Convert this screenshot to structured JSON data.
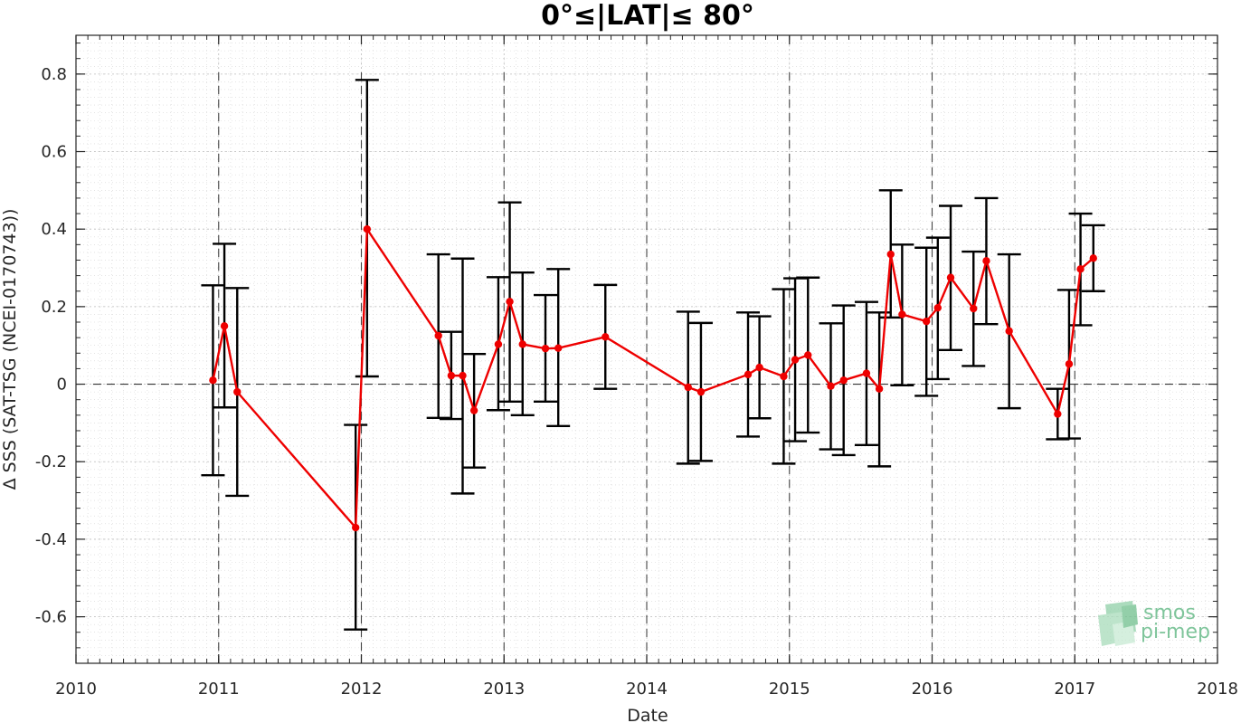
{
  "chart_data": {
    "type": "line",
    "title": "0°≤|LAT|≤ 80°",
    "xlabel": "Date",
    "ylabel": "Δ SSS (SAT-TSG (NCEI-0170743))",
    "xlim": [
      2010,
      2018
    ],
    "ylim": [
      -0.72,
      0.9
    ],
    "xticks": [
      "2010",
      "2011",
      "2012",
      "2013",
      "2014",
      "2015",
      "2016",
      "2017",
      "2018"
    ],
    "yticks": [
      "-0.6",
      "-0.4",
      "-0.2",
      "0",
      "0.2",
      "0.4",
      "0.6",
      "0.8"
    ],
    "grid": true,
    "zero_line": true,
    "vertical_year_lines": [
      "2011",
      "2012",
      "2013",
      "2014",
      "2015",
      "2016",
      "2017"
    ],
    "series": [
      {
        "color": "#ee0000",
        "errorbar_color": "#000000",
        "points": [
          {
            "x": 2010.96,
            "y": 0.01,
            "lo": -0.235,
            "hi": 0.255
          },
          {
            "x": 2011.04,
            "y": 0.15,
            "lo": -0.06,
            "hi": 0.362
          },
          {
            "x": 2011.13,
            "y": -0.02,
            "lo": -0.288,
            "hi": 0.248
          },
          {
            "x": 2011.96,
            "y": -0.37,
            "lo": -0.633,
            "hi": -0.105
          },
          {
            "x": 2012.04,
            "y": 0.4,
            "lo": 0.02,
            "hi": 0.785
          },
          {
            "x": 2012.54,
            "y": 0.125,
            "lo": -0.087,
            "hi": 0.335
          },
          {
            "x": 2012.63,
            "y": 0.022,
            "lo": -0.09,
            "hi": 0.135
          },
          {
            "x": 2012.71,
            "y": 0.022,
            "lo": -0.282,
            "hi": 0.324
          },
          {
            "x": 2012.79,
            "y": -0.068,
            "lo": -0.215,
            "hi": 0.078
          },
          {
            "x": 2012.96,
            "y": 0.103,
            "lo": -0.067,
            "hi": 0.276
          },
          {
            "x": 2013.04,
            "y": 0.213,
            "lo": -0.045,
            "hi": 0.469
          },
          {
            "x": 2013.13,
            "y": 0.103,
            "lo": -0.08,
            "hi": 0.288
          },
          {
            "x": 2013.29,
            "y": 0.092,
            "lo": -0.045,
            "hi": 0.23
          },
          {
            "x": 2013.38,
            "y": 0.093,
            "lo": -0.108,
            "hi": 0.297
          },
          {
            "x": 2013.71,
            "y": 0.122,
            "lo": -0.012,
            "hi": 0.256
          },
          {
            "x": 2014.29,
            "y": -0.008,
            "lo": -0.205,
            "hi": 0.187
          },
          {
            "x": 2014.38,
            "y": -0.02,
            "lo": -0.198,
            "hi": 0.158
          },
          {
            "x": 2014.71,
            "y": 0.025,
            "lo": -0.135,
            "hi": 0.185
          },
          {
            "x": 2014.79,
            "y": 0.043,
            "lo": -0.088,
            "hi": 0.175
          },
          {
            "x": 2014.96,
            "y": 0.02,
            "lo": -0.205,
            "hi": 0.245
          },
          {
            "x": 2015.04,
            "y": 0.063,
            "lo": -0.147,
            "hi": 0.273
          },
          {
            "x": 2015.13,
            "y": 0.075,
            "lo": -0.125,
            "hi": 0.275
          },
          {
            "x": 2015.29,
            "y": -0.005,
            "lo": -0.168,
            "hi": 0.157
          },
          {
            "x": 2015.38,
            "y": 0.01,
            "lo": -0.183,
            "hi": 0.203
          },
          {
            "x": 2015.54,
            "y": 0.028,
            "lo": -0.157,
            "hi": 0.212
          },
          {
            "x": 2015.63,
            "y": -0.012,
            "lo": -0.212,
            "hi": 0.185
          },
          {
            "x": 2015.71,
            "y": 0.335,
            "lo": 0.172,
            "hi": 0.5
          },
          {
            "x": 2015.79,
            "y": 0.18,
            "lo": -0.003,
            "hi": 0.36
          },
          {
            "x": 2015.96,
            "y": 0.162,
            "lo": -0.03,
            "hi": 0.352
          },
          {
            "x": 2016.04,
            "y": 0.197,
            "lo": 0.013,
            "hi": 0.378
          },
          {
            "x": 2016.13,
            "y": 0.275,
            "lo": 0.088,
            "hi": 0.46
          },
          {
            "x": 2016.29,
            "y": 0.195,
            "lo": 0.047,
            "hi": 0.342
          },
          {
            "x": 2016.38,
            "y": 0.318,
            "lo": 0.155,
            "hi": 0.48
          },
          {
            "x": 2016.54,
            "y": 0.137,
            "lo": -0.062,
            "hi": 0.335
          },
          {
            "x": 2016.88,
            "y": -0.077,
            "lo": -0.142,
            "hi": -0.012
          },
          {
            "x": 2016.96,
            "y": 0.052,
            "lo": -0.14,
            "hi": 0.243
          },
          {
            "x": 2017.04,
            "y": 0.297,
            "lo": 0.152,
            "hi": 0.44
          },
          {
            "x": 2017.13,
            "y": 0.325,
            "lo": 0.24,
            "hi": 0.41
          }
        ]
      }
    ]
  },
  "logo": {
    "line1": "smos",
    "line2": "pi-mep",
    "color": "#7fc59b"
  }
}
